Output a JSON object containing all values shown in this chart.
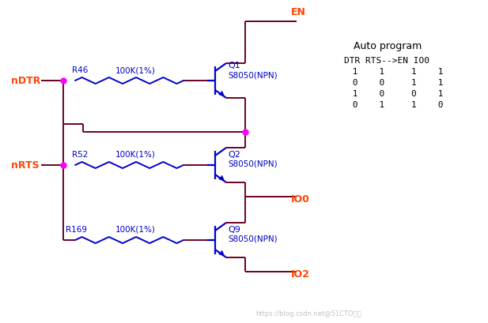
{
  "bg_color": "#ffffff",
  "wire_color": "#6B0020",
  "res_color": "#0000CC",
  "blue": "#0000CC",
  "magenta": "#FF00FF",
  "orange_red": "#FF4500",
  "figsize": [
    6.17,
    4.1
  ],
  "dpi": 100,
  "watermark": "https://blog.csdn.net@51CTO博客",
  "title": "Auto program",
  "table_header": "DTR RTS-->EN IO0",
  "table_rows": [
    [
      "1",
      "1",
      "1",
      "1"
    ],
    [
      "0",
      "0",
      "1",
      "1"
    ],
    [
      "1",
      "0",
      "0",
      "1"
    ],
    [
      "0",
      "1",
      "1",
      "0"
    ]
  ]
}
